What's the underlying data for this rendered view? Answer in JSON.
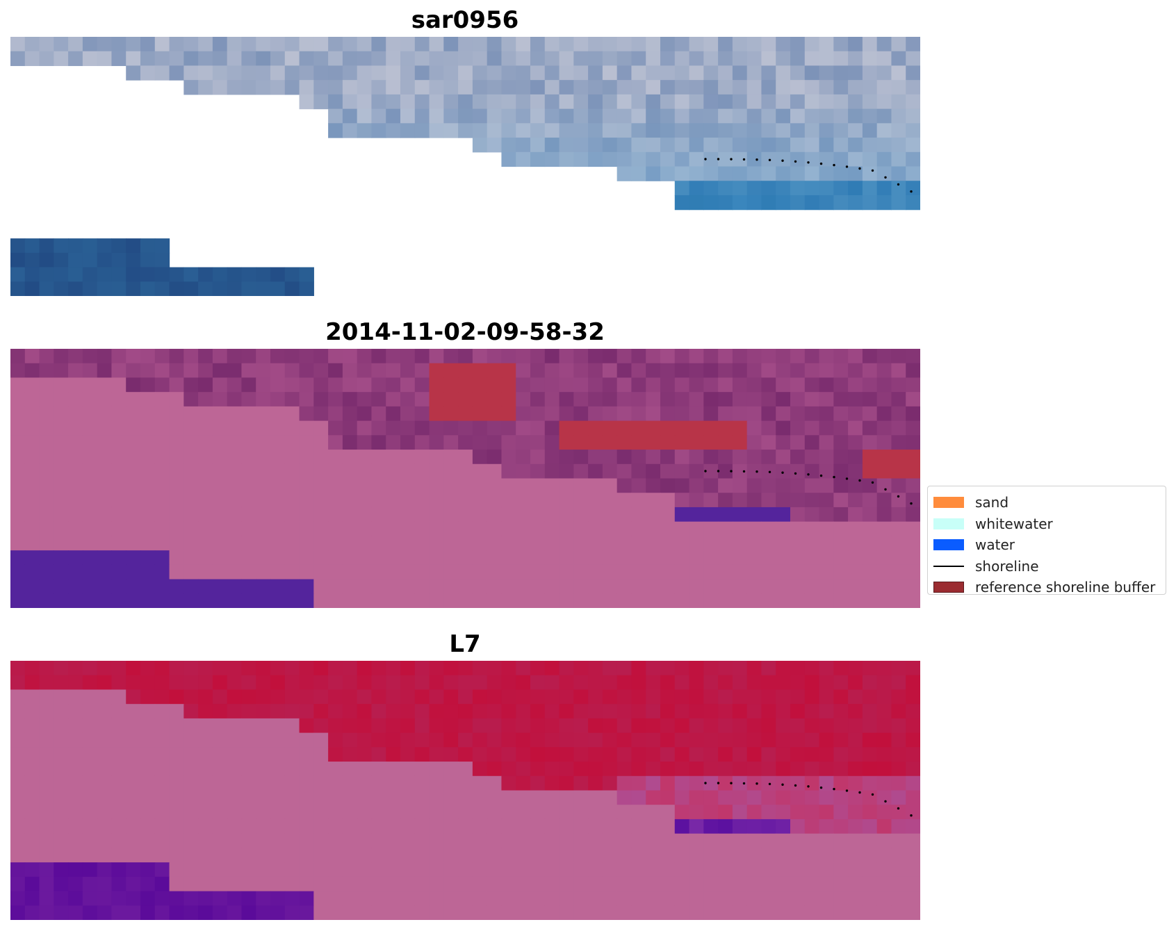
{
  "panels": [
    {
      "id": "rgb",
      "title": "sar0956",
      "scheme": "rgb"
    },
    {
      "id": "classified",
      "title": "2014-11-02-09-58-32",
      "scheme": "classified"
    },
    {
      "id": "ndwi",
      "title": "L7",
      "scheme": "index"
    }
  ],
  "legend": {
    "items": [
      {
        "label": "sand",
        "kind": "patch",
        "color": "#ff8c3c"
      },
      {
        "label": "whitewater",
        "kind": "patch",
        "color": "#c8fff8"
      },
      {
        "label": "water",
        "kind": "patch",
        "color": "#0a5cff"
      },
      {
        "label": "shoreline",
        "kind": "line",
        "color": "#000000"
      },
      {
        "label": "reference shoreline buffer",
        "kind": "patch",
        "color": "#9b2c31"
      }
    ]
  },
  "colors": {
    "land_pink": "#bd6696",
    "water_purple": "#54249c",
    "buffer_red": "#b83448",
    "shoreline": "#000000"
  }
}
